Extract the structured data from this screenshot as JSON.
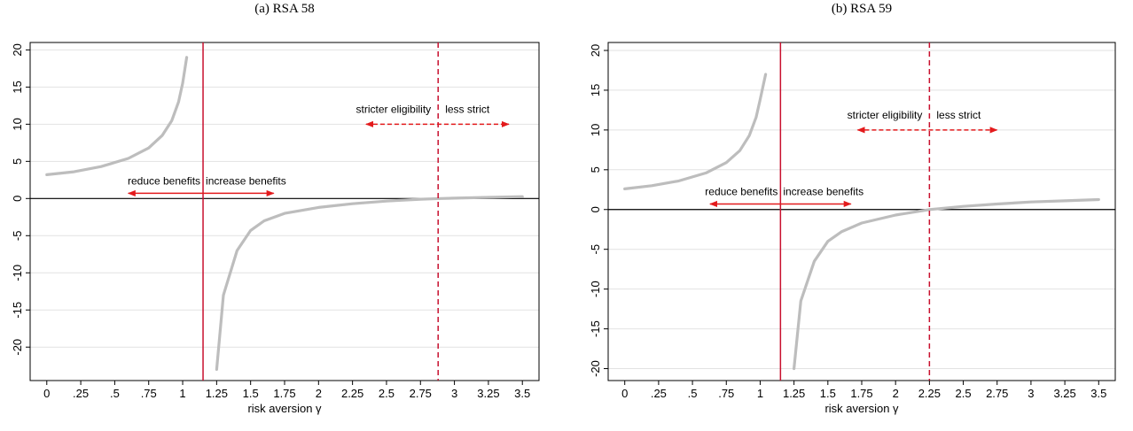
{
  "chart_data": [
    {
      "type": "line",
      "title": "(a) RSA 58",
      "xlabel": "risk aversion γ",
      "ylabel": "",
      "xlim": [
        0,
        3.5
      ],
      "ylim": [
        -24.5,
        21
      ],
      "x_ticks": [
        0,
        0.25,
        0.5,
        0.75,
        1,
        1.25,
        1.5,
        1.75,
        2,
        2.25,
        2.5,
        2.75,
        3,
        3.25,
        3.5
      ],
      "x_tick_labels": [
        "0",
        ".25",
        ".5",
        ".75",
        "1",
        "1.25",
        "1.5",
        "1.75",
        "2",
        "2.25",
        "2.5",
        "2.75",
        "3",
        "3.25",
        "3.5"
      ],
      "y_ticks": [
        -20,
        -15,
        -10,
        -5,
        0,
        5,
        10,
        15,
        20
      ],
      "y_tick_labels": [
        "-20",
        "-15",
        "-10",
        "-5",
        "0",
        "5",
        "10",
        "15",
        "20"
      ],
      "grid": "horizontal",
      "series": [
        {
          "x": [
            0,
            0.2,
            0.4,
            0.6,
            0.75,
            0.85,
            0.92,
            0.97,
            1.0,
            1.03
          ],
          "y": [
            3.2,
            3.6,
            4.3,
            5.4,
            6.8,
            8.5,
            10.5,
            13.0,
            15.5,
            19.0
          ]
        },
        {
          "x": [
            1.25,
            1.3,
            1.4,
            1.5,
            1.6,
            1.75,
            2.0,
            2.25,
            2.5,
            2.75,
            2.9,
            3.0,
            3.25,
            3.5
          ],
          "y": [
            -23.0,
            -13.0,
            -7.0,
            -4.3,
            -3.0,
            -2.0,
            -1.2,
            -0.7,
            -0.35,
            -0.1,
            0,
            0.05,
            0.15,
            0.25
          ]
        }
      ],
      "reference_lines": {
        "solid_x": 1.15,
        "dashed_x": 2.88,
        "zero_y": 0
      },
      "annotations": {
        "left_text": "reduce benefits",
        "right_text": "increase benefits",
        "arrow_y": 0.7,
        "arrow_from": 0.6,
        "arrow_to": 1.67,
        "upper_left_text": "stricter eligibility",
        "upper_right_text": "less strict",
        "upper_arrow_y": 10,
        "upper_arrow_from": 2.35,
        "upper_arrow_to": 3.4
      },
      "colors": {
        "curve": "#bdbdbd",
        "reference": "#c8102e",
        "arrow": "#e31a1c"
      }
    },
    {
      "type": "line",
      "title": "(b) RSA 59",
      "xlabel": "risk aversion γ",
      "ylabel": "",
      "xlim": [
        0,
        3.5
      ],
      "ylim": [
        -21.5,
        21
      ],
      "x_ticks": [
        0,
        0.25,
        0.5,
        0.75,
        1,
        1.25,
        1.5,
        1.75,
        2,
        2.25,
        2.5,
        2.75,
        3,
        3.25,
        3.5
      ],
      "x_tick_labels": [
        "0",
        ".25",
        ".5",
        ".75",
        "1",
        "1.25",
        "1.5",
        "1.75",
        "2",
        "2.25",
        "2.5",
        "2.75",
        "3",
        "3.25",
        "3.5"
      ],
      "y_ticks": [
        -20,
        -15,
        -10,
        -5,
        0,
        5,
        10,
        15,
        20
      ],
      "y_tick_labels": [
        "-20",
        "-15",
        "-10",
        "-5",
        "0",
        "5",
        "10",
        "15",
        "20"
      ],
      "grid": "horizontal",
      "series": [
        {
          "x": [
            0,
            0.2,
            0.4,
            0.6,
            0.75,
            0.85,
            0.92,
            0.97,
            1.0,
            1.04
          ],
          "y": [
            2.6,
            3.0,
            3.6,
            4.6,
            5.9,
            7.4,
            9.3,
            11.6,
            13.8,
            17.0
          ]
        },
        {
          "x": [
            1.25,
            1.3,
            1.4,
            1.5,
            1.6,
            1.75,
            2.0,
            2.25,
            2.5,
            2.75,
            3.0,
            3.25,
            3.5
          ],
          "y": [
            -20.0,
            -11.5,
            -6.5,
            -4.0,
            -2.8,
            -1.7,
            -0.7,
            0,
            0.4,
            0.7,
            0.95,
            1.1,
            1.25
          ]
        }
      ],
      "reference_lines": {
        "solid_x": 1.15,
        "dashed_x": 2.25,
        "zero_y": 0
      },
      "annotations": {
        "left_text": "reduce benefits",
        "right_text": "increase benefits",
        "arrow_y": 0.7,
        "arrow_from": 0.63,
        "arrow_to": 1.67,
        "upper_left_text": "stricter eligibility",
        "upper_right_text": "less strict",
        "upper_arrow_y": 10,
        "upper_arrow_from": 1.72,
        "upper_arrow_to": 2.75
      },
      "colors": {
        "curve": "#bdbdbd",
        "reference": "#c8102e",
        "arrow": "#e31a1c"
      }
    }
  ]
}
